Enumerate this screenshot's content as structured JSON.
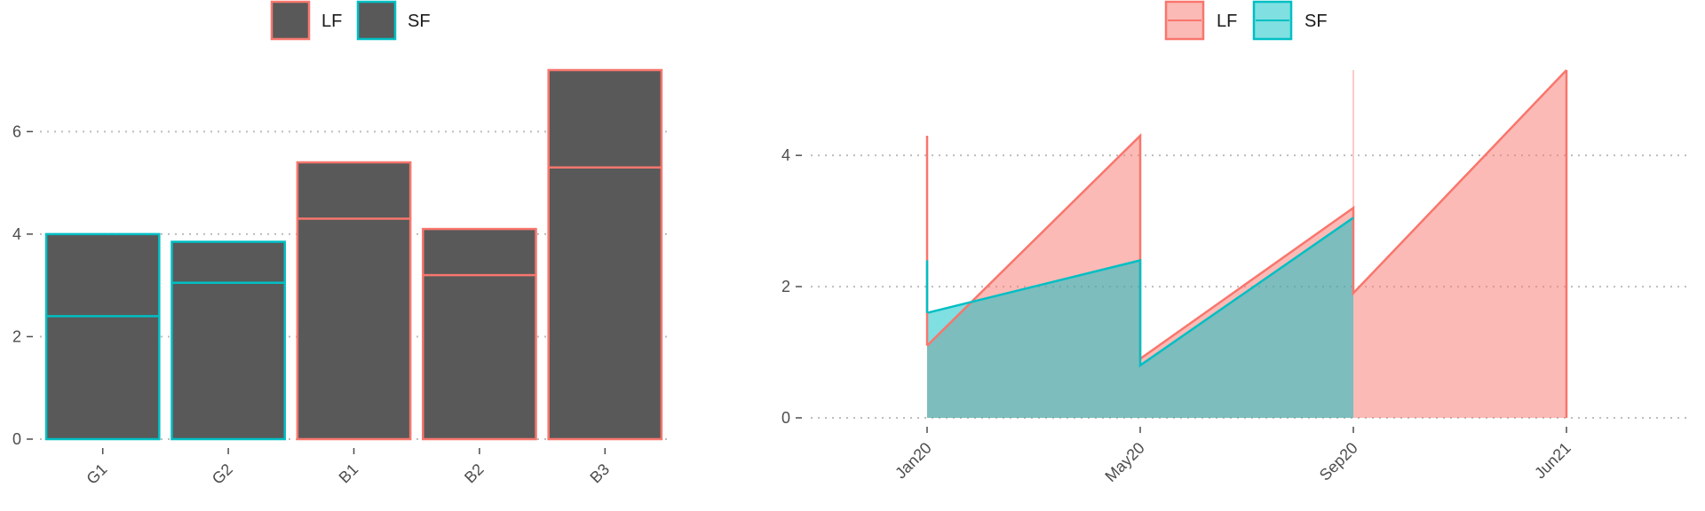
{
  "colors": {
    "LF": "#F8766D",
    "SF": "#00BFC4",
    "bar_fill": "#595959",
    "LF_fill": "#F8766D",
    "SF_fill": "#00BFC4",
    "overlap_fill": "#7FBDB9",
    "grid": "#bdbdbd",
    "axis_text": "#4d4d4d"
  },
  "chart_data": [
    {
      "type": "bar",
      "legend": {
        "position": "top",
        "entries": [
          "LF",
          "SF"
        ]
      },
      "categories": [
        "G1",
        "G2",
        "B1",
        "B2",
        "B3"
      ],
      "groups": [
        "SF",
        "SF",
        "LF",
        "LF",
        "LF"
      ],
      "series": [
        {
          "name": "LF",
          "values": [
            null,
            null,
            5.4,
            4.1,
            7.2
          ],
          "inner_line": [
            null,
            null,
            4.3,
            3.2,
            5.3
          ]
        },
        {
          "name": "SF",
          "values": [
            4.0,
            3.85,
            null,
            null,
            null
          ],
          "inner_line": [
            2.4,
            3.05,
            null,
            null,
            null
          ]
        }
      ],
      "ylim": [
        0,
        7.2
      ],
      "yticks": [
        0,
        2,
        4,
        6
      ],
      "grid": "horizontal dotted",
      "xlabel": "",
      "ylabel": ""
    },
    {
      "type": "area",
      "legend": {
        "position": "top",
        "entries": [
          "LF",
          "SF"
        ]
      },
      "xticks": [
        "Jan20",
        "May20",
        "Sep20",
        "Jun21"
      ],
      "series": [
        {
          "name": "LF",
          "points": [
            [
              "Jan20",
              1.1
            ],
            [
              "May20",
              4.3
            ],
            [
              "May20",
              0.9
            ],
            [
              "Sep20",
              3.2
            ],
            [
              "Sep20",
              1.9
            ],
            [
              "Jun21",
              5.3
            ]
          ],
          "spikes": [
            [
              "Jan20",
              4.3
            ]
          ]
        },
        {
          "name": "SF",
          "points": [
            [
              "Jan20",
              1.6
            ],
            [
              "May20",
              2.4
            ],
            [
              "May20",
              0.8
            ],
            [
              "Sep20",
              3.05
            ]
          ],
          "spikes": [
            [
              "Jan20",
              2.4
            ]
          ]
        }
      ],
      "ylim": [
        0,
        5.3
      ],
      "yticks": [
        0,
        2,
        4
      ],
      "grid": "horizontal dotted",
      "xlabel": "",
      "ylabel": ""
    }
  ]
}
